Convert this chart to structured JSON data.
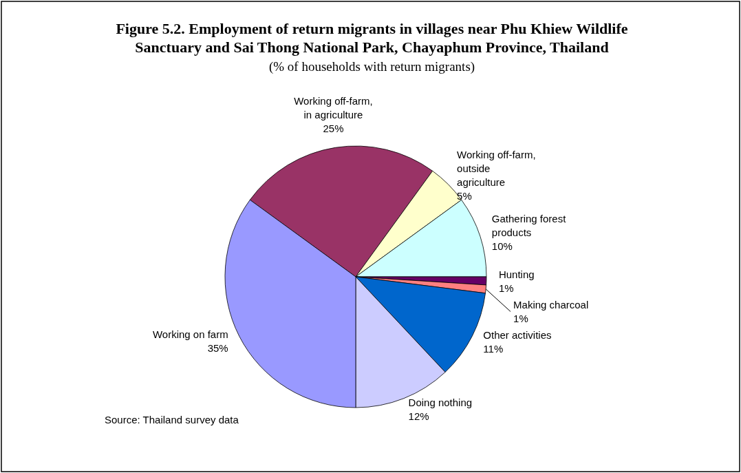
{
  "chart_data": {
    "type": "pie",
    "title": "Figure 5.2. Employment of return migrants in villages near Phu Khiew Wildlife Sanctuary and Sai Thong National Park, Chayaphum Province, Thailand",
    "subtitle": "(% of households with return migrants)",
    "categories": [
      "Working off-farm, in agriculture",
      "Working off-farm, outside agriculture",
      "Gathering forest products",
      "Hunting",
      "Making charcoal",
      "Other activities",
      "Doing nothing",
      "Working on farm"
    ],
    "values": [
      25,
      5,
      10,
      1,
      1,
      11,
      12,
      35
    ],
    "colors": [
      "#993366",
      "#ffffcc",
      "#ccffff",
      "#660066",
      "#ff8080",
      "#0066cc",
      "#ccccff",
      "#9999ff"
    ],
    "value_labels": [
      "25%",
      "5%",
      "10%",
      "1%",
      "1%",
      "11%",
      "12%",
      "35%"
    ],
    "annotations": [
      "Source: Thailand survey data"
    ]
  }
}
